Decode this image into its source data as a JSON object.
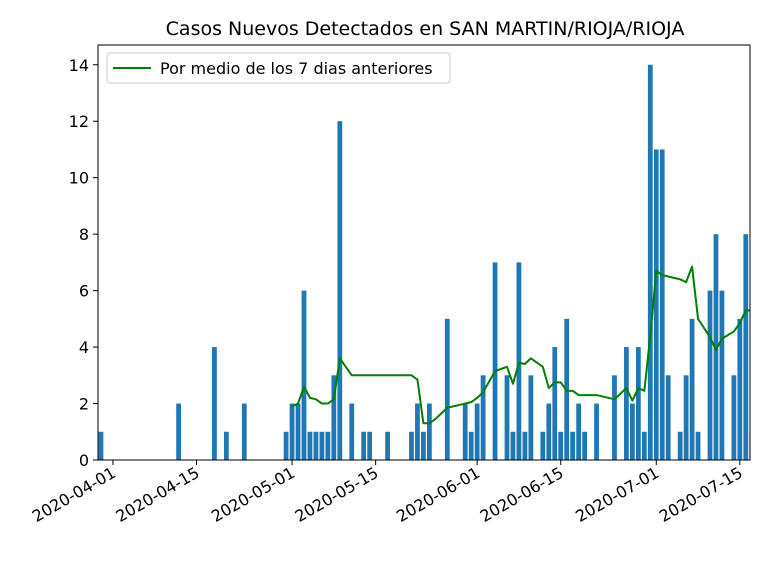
{
  "chart_data": {
    "type": "bar",
    "title": "Casos Nuevos Detectados en SAN MARTIN/RIOJA/RIOJA",
    "xlabel": "",
    "ylabel": "",
    "x_ticks": [
      "2020-04-01",
      "2020-04-15",
      "2020-05-01",
      "2020-05-15",
      "2020-06-01",
      "2020-06-15",
      "2020-07-01",
      "2020-07-15"
    ],
    "y_ticks": [
      0,
      2,
      4,
      6,
      8,
      10,
      12,
      14
    ],
    "ylim": [
      0,
      14.7
    ],
    "xlim": [
      "2020-03-30",
      "2020-07-16"
    ],
    "legend_position": "upper-left",
    "grid": false,
    "series": [
      {
        "type": "bar",
        "color": "#1f77b4",
        "points": [
          [
            "2020-03-30",
            1
          ],
          [
            "2020-04-12",
            2
          ],
          [
            "2020-04-18",
            4
          ],
          [
            "2020-04-20",
            1
          ],
          [
            "2020-04-23",
            2
          ],
          [
            "2020-04-30",
            1
          ],
          [
            "2020-05-01",
            2
          ],
          [
            "2020-05-02",
            2
          ],
          [
            "2020-05-03",
            6
          ],
          [
            "2020-05-04",
            1
          ],
          [
            "2020-05-05",
            1
          ],
          [
            "2020-05-06",
            1
          ],
          [
            "2020-05-07",
            1
          ],
          [
            "2020-05-08",
            3
          ],
          [
            "2020-05-09",
            12
          ],
          [
            "2020-05-11",
            2
          ],
          [
            "2020-05-13",
            1
          ],
          [
            "2020-05-14",
            1
          ],
          [
            "2020-05-17",
            1
          ],
          [
            "2020-05-21",
            1
          ],
          [
            "2020-05-22",
            2
          ],
          [
            "2020-05-23",
            1
          ],
          [
            "2020-05-24",
            2
          ],
          [
            "2020-05-27",
            5
          ],
          [
            "2020-05-30",
            2
          ],
          [
            "2020-05-31",
            1
          ],
          [
            "2020-06-01",
            2
          ],
          [
            "2020-06-02",
            3
          ],
          [
            "2020-06-04",
            7
          ],
          [
            "2020-06-06",
            3
          ],
          [
            "2020-06-07",
            1
          ],
          [
            "2020-06-08",
            7
          ],
          [
            "2020-06-09",
            1
          ],
          [
            "2020-06-10",
            3
          ],
          [
            "2020-06-12",
            1
          ],
          [
            "2020-06-13",
            2
          ],
          [
            "2020-06-14",
            4
          ],
          [
            "2020-06-15",
            1
          ],
          [
            "2020-06-16",
            5
          ],
          [
            "2020-06-17",
            1
          ],
          [
            "2020-06-18",
            2
          ],
          [
            "2020-06-19",
            1
          ],
          [
            "2020-06-21",
            2
          ],
          [
            "2020-06-24",
            3
          ],
          [
            "2020-06-26",
            4
          ],
          [
            "2020-06-27",
            2
          ],
          [
            "2020-06-28",
            4
          ],
          [
            "2020-06-29",
            1
          ],
          [
            "2020-06-30",
            14
          ],
          [
            "2020-07-01",
            11
          ],
          [
            "2020-07-02",
            11
          ],
          [
            "2020-07-03",
            3
          ],
          [
            "2020-07-05",
            1
          ],
          [
            "2020-07-06",
            3
          ],
          [
            "2020-07-07",
            5
          ],
          [
            "2020-07-08",
            1
          ],
          [
            "2020-07-10",
            6
          ],
          [
            "2020-07-11",
            8
          ],
          [
            "2020-07-12",
            6
          ],
          [
            "2020-07-14",
            3
          ],
          [
            "2020-07-15",
            5
          ],
          [
            "2020-07-16",
            8
          ],
          [
            "2020-07-17",
            1
          ]
        ]
      },
      {
        "type": "line",
        "name": "Por medio de los 7 dias anteriores",
        "color": "#008000",
        "points": [
          [
            "2020-05-01",
            1.9
          ],
          [
            "2020-05-02",
            2.0
          ],
          [
            "2020-05-03",
            2.6
          ],
          [
            "2020-05-04",
            2.2
          ],
          [
            "2020-05-05",
            2.15
          ],
          [
            "2020-05-06",
            2.0
          ],
          [
            "2020-05-07",
            2.0
          ],
          [
            "2020-05-08",
            2.15
          ],
          [
            "2020-05-09",
            3.6
          ],
          [
            "2020-05-10",
            3.3
          ],
          [
            "2020-05-11",
            3.0
          ],
          [
            "2020-05-14",
            3.0
          ],
          [
            "2020-05-17",
            3.0
          ],
          [
            "2020-05-21",
            3.0
          ],
          [
            "2020-05-22",
            2.85
          ],
          [
            "2020-05-23",
            1.3
          ],
          [
            "2020-05-24",
            1.3
          ],
          [
            "2020-05-25",
            1.45
          ],
          [
            "2020-05-27",
            1.85
          ],
          [
            "2020-05-30",
            2.0
          ],
          [
            "2020-05-31",
            2.05
          ],
          [
            "2020-06-01",
            2.2
          ],
          [
            "2020-06-02",
            2.4
          ],
          [
            "2020-06-04",
            3.15
          ],
          [
            "2020-06-06",
            3.3
          ],
          [
            "2020-06-07",
            2.7
          ],
          [
            "2020-06-08",
            3.45
          ],
          [
            "2020-06-09",
            3.4
          ],
          [
            "2020-06-10",
            3.6
          ],
          [
            "2020-06-12",
            3.3
          ],
          [
            "2020-06-13",
            2.55
          ],
          [
            "2020-06-14",
            2.75
          ],
          [
            "2020-06-15",
            2.75
          ],
          [
            "2020-06-16",
            2.45
          ],
          [
            "2020-06-17",
            2.45
          ],
          [
            "2020-06-18",
            2.3
          ],
          [
            "2020-06-21",
            2.3
          ],
          [
            "2020-06-24",
            2.15
          ],
          [
            "2020-06-26",
            2.55
          ],
          [
            "2020-06-27",
            2.1
          ],
          [
            "2020-06-28",
            2.55
          ],
          [
            "2020-06-29",
            2.45
          ],
          [
            "2020-06-30",
            4.4
          ],
          [
            "2020-07-01",
            6.7
          ],
          [
            "2020-07-02",
            6.55
          ],
          [
            "2020-07-03",
            6.5
          ],
          [
            "2020-07-05",
            6.4
          ],
          [
            "2020-07-06",
            6.3
          ],
          [
            "2020-07-07",
            6.85
          ],
          [
            "2020-07-08",
            5.0
          ],
          [
            "2020-07-10",
            4.35
          ],
          [
            "2020-07-11",
            3.9
          ],
          [
            "2020-07-12",
            4.3
          ],
          [
            "2020-07-14",
            4.55
          ],
          [
            "2020-07-15",
            4.85
          ],
          [
            "2020-07-16",
            5.3
          ],
          [
            "2020-07-17",
            5.3
          ]
        ]
      }
    ]
  }
}
